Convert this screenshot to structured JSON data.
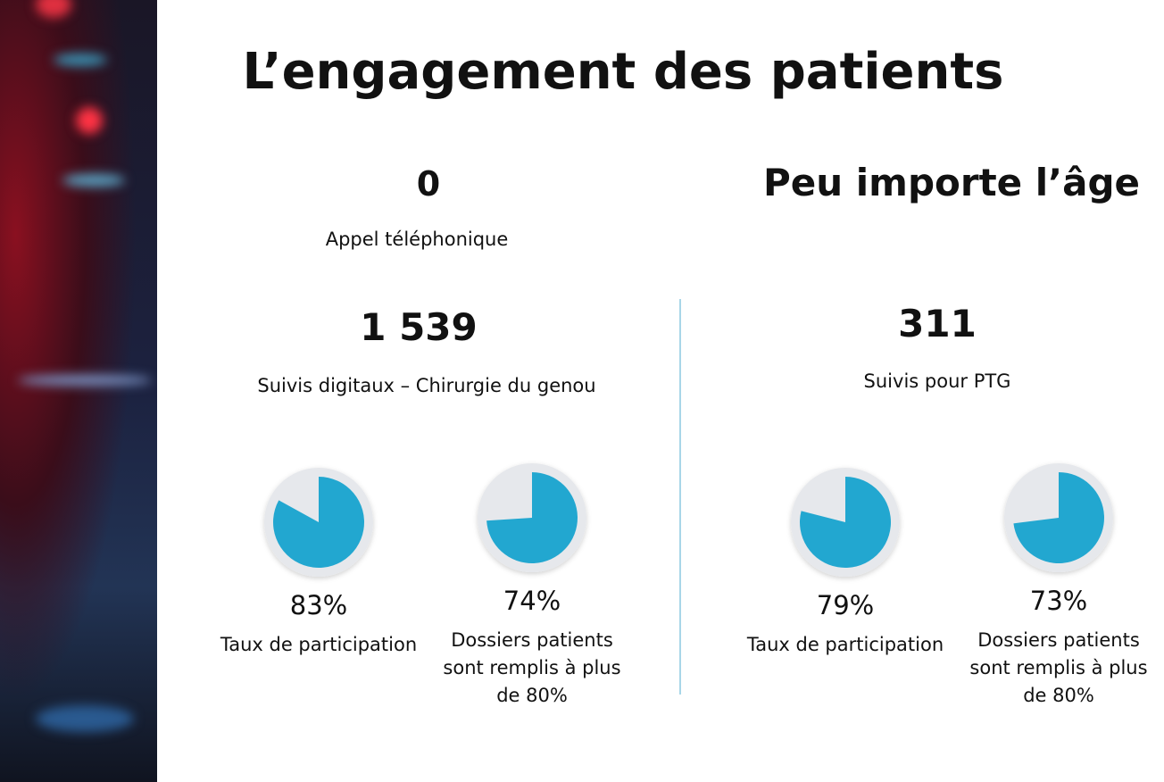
{
  "title": "L’engagement des patients",
  "left": {
    "top_stat": "0",
    "top_caption": "Appel téléphonique",
    "stat": "1 539",
    "caption": "Suivis digitaux – Chirurgie du genou",
    "pies": [
      {
        "value": 83,
        "label": "83%",
        "caption": "Taux de participation"
      },
      {
        "value": 74,
        "label": "74%",
        "caption": "Dossiers patients sont remplis à plus de 80%"
      }
    ]
  },
  "right": {
    "heading": "Peu importe l’âge",
    "stat": "311",
    "caption": "Suivis pour PTG",
    "pies": [
      {
        "value": 79,
        "label": "79%",
        "caption": "Taux de participation"
      },
      {
        "value": 73,
        "label": "73%",
        "caption": "Dossiers patients sont remplis à plus de 80%"
      }
    ]
  },
  "pie_color": "#22a7d0"
}
